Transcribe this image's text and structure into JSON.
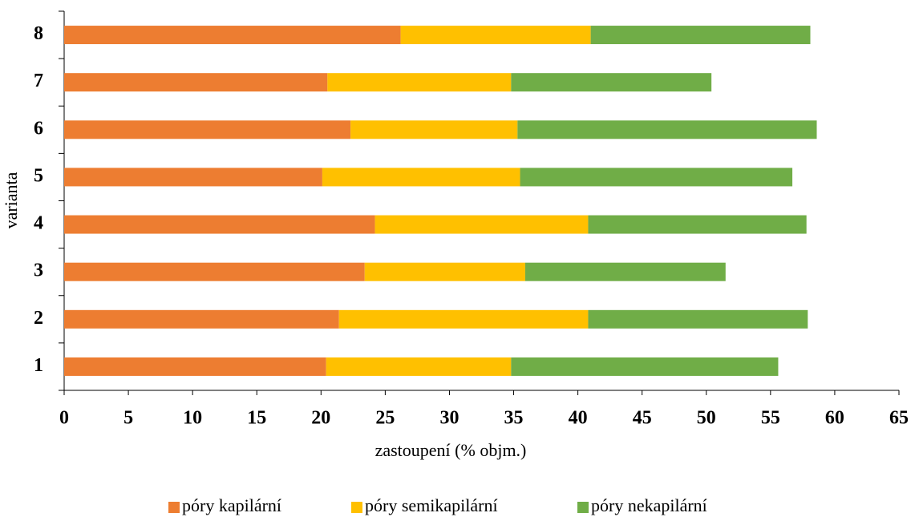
{
  "chart_data": {
    "type": "stacked-barh",
    "categories": [
      "1",
      "2",
      "3",
      "4",
      "5",
      "6",
      "7",
      "8"
    ],
    "series": [
      {
        "name": "póry kapilární",
        "color": "#ed7d31",
        "values": [
          20.4,
          21.4,
          23.4,
          24.2,
          20.1,
          22.3,
          20.5,
          26.2
        ]
      },
      {
        "name": "póry semikapilární",
        "color": "#ffc000",
        "values": [
          14.4,
          19.4,
          12.5,
          16.6,
          15.4,
          13.0,
          14.3,
          14.8
        ]
      },
      {
        "name": "póry nekapilární",
        "color": "#70ad47",
        "values": [
          20.8,
          17.1,
          15.6,
          17.0,
          21.2,
          23.3,
          15.6,
          17.1
        ]
      }
    ],
    "xlim": [
      0,
      65
    ],
    "xticks": [
      0,
      5,
      10,
      15,
      20,
      25,
      30,
      35,
      40,
      45,
      50,
      55,
      60,
      65
    ],
    "xlabel": "zastoupení (% objm.)",
    "ylabel": "varianta",
    "legend": "bottom"
  }
}
